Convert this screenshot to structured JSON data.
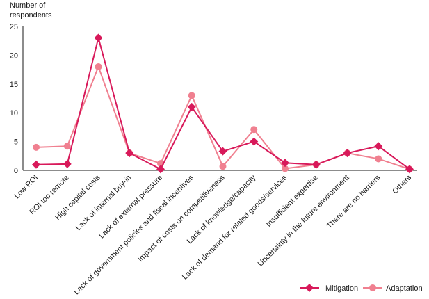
{
  "chart_data": {
    "type": "line",
    "ylabel_lines": [
      "Number of",
      "respondents"
    ],
    "xlabel": "",
    "ylim": [
      0,
      25
    ],
    "yticks": [
      0,
      5,
      10,
      15,
      20,
      25
    ],
    "grid": false,
    "legend_position": "bottom-right",
    "categories": [
      "Low ROI",
      "ROI too remote",
      "High capital costs",
      "Lack of internal buy-in",
      "Lack of external pressure",
      "Lack of government policies and fiscal incentives",
      "Impact of costs on competitiveness",
      "Lack of knowledge/capacity",
      "Lack of demand for related goods/services",
      "Insufficient expertise",
      "Uncertainty in the future environment",
      "There are no barriers",
      "Others"
    ],
    "series": [
      {
        "name": "Mitigation",
        "marker": "diamond",
        "color": "#d8195a",
        "values": [
          1,
          1.1,
          23,
          3,
          0.2,
          11,
          3.3,
          5,
          1.3,
          1,
          3,
          4.2,
          0.2
        ]
      },
      {
        "name": "Adaptation",
        "marker": "circle",
        "color": "#f08090",
        "values": [
          4,
          4.2,
          18,
          3,
          1.2,
          13,
          0.7,
          7.1,
          0.3,
          1,
          3,
          2,
          0.2
        ]
      }
    ]
  }
}
